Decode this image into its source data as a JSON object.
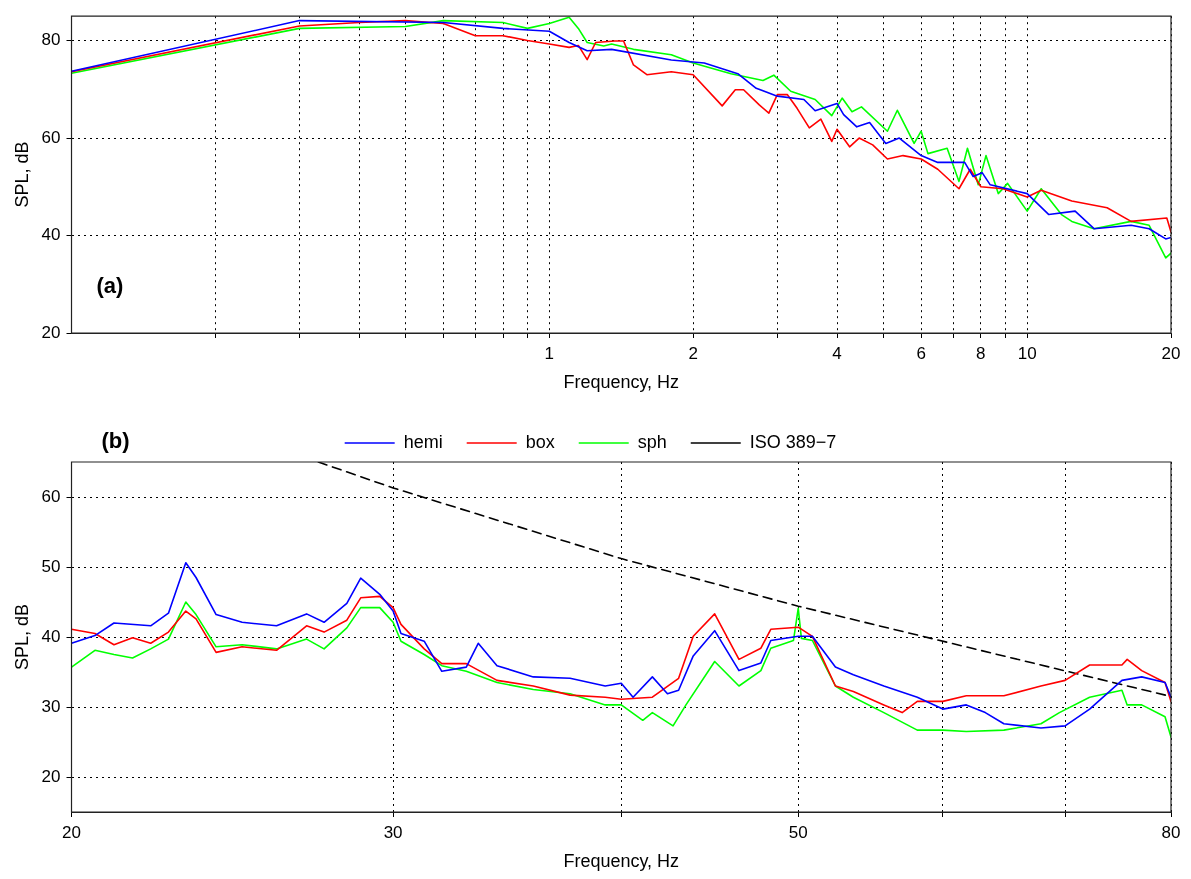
{
  "chart_data": [
    {
      "type": "line",
      "xlabel": "Frequency, Hz",
      "ylabel": "SPL, dB",
      "log": "x",
      "grid": true,
      "marker": "none",
      "line_style": "solid",
      "xlim": [
        0.1,
        20
      ],
      "ylim": [
        20,
        85
      ],
      "yticks": [
        20,
        40,
        60,
        80
      ],
      "xticks": [
        {
          "value": 0.2,
          "label": null
        },
        {
          "value": 0.3,
          "label": null
        },
        {
          "value": 0.4,
          "label": null
        },
        {
          "value": 0.5,
          "label": null
        },
        {
          "value": 0.6,
          "label": null
        },
        {
          "value": 0.7,
          "label": null
        },
        {
          "value": 0.8,
          "label": null
        },
        {
          "value": 0.9,
          "label": null
        },
        1,
        2,
        {
          "value": 3,
          "label": null
        },
        4,
        {
          "value": 5,
          "label": null
        },
        6,
        {
          "value": 7,
          "label": null
        },
        8,
        {
          "value": 9,
          "label": null
        },
        10,
        20
      ],
      "annotations": [
        "(a)"
      ],
      "series": [
        {
          "color": "#0000ff",
          "x": [
            0.1,
            0.3,
            0.6,
            0.8,
            1,
            1.1,
            1.2,
            1.35,
            1.8,
            2.11,
            2.48,
            2.71,
            3,
            3.41,
            3.6,
            4,
            4.13,
            4.4,
            4.68,
            5.06,
            5.4,
            6,
            6.5,
            7.4,
            7.71,
            8.05,
            8.37,
            10,
            11.1,
            12.6,
            13.8,
            16.5,
            18,
            19.5,
            20
          ],
          "values": [
            73.7,
            84.1,
            83.7,
            82.5,
            81.9,
            79.6,
            77.9,
            78.2,
            76,
            75.4,
            73.2,
            70.2,
            68.6,
            67.9,
            65.6,
            67.1,
            64.8,
            62.3,
            63.2,
            58.9,
            60,
            56.4,
            55,
            55,
            52.1,
            52.9,
            50.4,
            48.6,
            44.3,
            45,
            41.4,
            42.1,
            41.4,
            39.3,
            39.6
          ]
        },
        {
          "color": "#ff0000",
          "x": [
            0.1,
            0.3,
            0.4,
            0.5,
            0.6,
            0.7,
            0.8,
            0.9,
            1,
            1.1,
            1.15,
            1.2,
            1.25,
            1.37,
            1.43,
            1.5,
            1.6,
            1.8,
            2,
            2.3,
            2.45,
            2.55,
            2.75,
            2.88,
            3,
            3.15,
            3.3,
            3.5,
            3.7,
            3.9,
            4,
            4.25,
            4.45,
            4.75,
            5.1,
            5.5,
            6,
            6.5,
            7.2,
            7.6,
            8,
            8.9,
            10,
            10.7,
            12.4,
            14.7,
            16.5,
            19.6,
            20
          ],
          "values": [
            73.6,
            83,
            83.7,
            84.1,
            83.5,
            81,
            81,
            80,
            79.3,
            78.6,
            79,
            76.1,
            79.6,
            79.9,
            79.9,
            75,
            73,
            73.6,
            73,
            66.6,
            69.9,
            69.9,
            66.8,
            65.1,
            68.9,
            68.9,
            66.1,
            62.1,
            63.9,
            59.3,
            61.8,
            58.2,
            60,
            58.6,
            55.7,
            56.4,
            55.7,
            53.6,
            49.6,
            53.6,
            50,
            49.6,
            47.9,
            49.3,
            47.1,
            45.7,
            42.9,
            43.6,
            40.7
          ]
        },
        {
          "color": "#00ff00",
          "x": [
            0.1,
            0.3,
            0.5,
            0.6,
            0.8,
            0.9,
            1,
            1.1,
            1.15,
            1.2,
            1.3,
            1.35,
            1.5,
            1.8,
            2,
            2.4,
            2.8,
            2.95,
            3.2,
            3.6,
            3.9,
            4.1,
            4.3,
            4.5,
            5.1,
            5.35,
            5.8,
            6,
            6.2,
            6.8,
            7.2,
            7.5,
            7.9,
            8.2,
            8.7,
            9.1,
            10,
            10.7,
            11.8,
            12.4,
            13.8,
            16.5,
            18,
            19.5,
            20
          ],
          "values": [
            73.3,
            82.5,
            82.9,
            84.1,
            83.7,
            82.5,
            83.5,
            84.8,
            82.5,
            79.6,
            78.9,
            79.3,
            78.2,
            77.1,
            75.4,
            73.2,
            71.8,
            72.9,
            69.6,
            67.9,
            64.6,
            68.2,
            65.4,
            66.4,
            61.4,
            65.7,
            58.9,
            61.4,
            56.8,
            57.9,
            51.1,
            57.9,
            50.4,
            56.4,
            48.6,
            50.7,
            45,
            49.6,
            44.3,
            42.9,
            41.4,
            42.9,
            42.1,
            35.4,
            36.4
          ]
        }
      ]
    },
    {
      "type": "line",
      "xlabel": "Frequency, Hz",
      "ylabel": "SPL, dB",
      "log": "x",
      "grid": true,
      "marker": "none",
      "line_style": "solid",
      "legend": "top",
      "xlim": [
        20,
        80
      ],
      "ylim": [
        15,
        65
      ],
      "yticks": [
        20,
        30,
        40,
        50,
        60
      ],
      "xticks": [
        20,
        30,
        {
          "value": 40,
          "label": null
        },
        50,
        {
          "value": 60,
          "label": null
        },
        {
          "value": 70,
          "label": null
        },
        80
      ],
      "annotations": [
        "(b)"
      ],
      "series": [
        {
          "name": "hemi",
          "color": "#0000ff",
          "x": [
            20,
            20.6,
            21.1,
            22.1,
            22.6,
            23.1,
            23.4,
            24,
            24.8,
            25.9,
            26.9,
            27.5,
            28.3,
            28.8,
            29.5,
            30,
            30.3,
            31.2,
            31.9,
            32.9,
            33.4,
            34.2,
            35.8,
            37.5,
            39.2,
            40,
            40.6,
            41.6,
            42.4,
            43,
            43.8,
            45,
            46.4,
            47.7,
            48.3,
            50,
            50.9,
            52.4,
            53.6,
            55.7,
            58.1,
            60,
            61.8,
            63.3,
            64.8,
            67.9,
            70,
            72.2,
            75.2,
            77.1,
            79.4,
            80
          ],
          "values": [
            39.1,
            40.2,
            42,
            41.6,
            43.4,
            50.6,
            48.5,
            43.2,
            42.1,
            41.6,
            43.3,
            42.1,
            44.8,
            48.4,
            46.1,
            43.7,
            40.5,
            39.4,
            35.1,
            35.7,
            39.1,
            35.9,
            34.3,
            34.1,
            33,
            33.4,
            31.4,
            34.3,
            31.9,
            32.4,
            37.3,
            40.9,
            35.2,
            36.3,
            39.5,
            40.1,
            40.1,
            35.7,
            34.6,
            33,
            31.4,
            29.7,
            30.3,
            29.2,
            27.6,
            27,
            27.3,
            29.7,
            33.8,
            34.3,
            33.5,
            31.4
          ]
        },
        {
          "name": "box",
          "color": "#ff0000",
          "x": [
            20,
            20.6,
            21.1,
            21.6,
            22.1,
            22.6,
            23.1,
            23.4,
            24,
            24.8,
            25.9,
            26.9,
            27.5,
            28.3,
            28.8,
            29.5,
            30,
            30.3,
            31.2,
            31.9,
            32.9,
            34.2,
            35.8,
            37.5,
            39.2,
            40,
            41.6,
            43,
            43.8,
            45,
            46.4,
            47.7,
            48.3,
            50,
            50.9,
            52.4,
            53.6,
            55.7,
            57,
            58.1,
            60,
            61.8,
            64.8,
            67.9,
            70,
            72.2,
            75.2,
            75.7,
            77.1,
            79.4,
            80
          ],
          "values": [
            41.1,
            40.5,
            38.9,
            39.9,
            39.1,
            40.7,
            43.7,
            42.6,
            37.8,
            38.6,
            38.1,
            41.6,
            40.7,
            42.4,
            45.6,
            45.8,
            44.2,
            41.8,
            38.3,
            36.2,
            36.2,
            33.8,
            33,
            31.7,
            31.4,
            31.1,
            31.4,
            34.1,
            40.1,
            43.3,
            36.8,
            38.4,
            41.1,
            41.4,
            40.1,
            33,
            32.2,
            30.3,
            29.2,
            30.8,
            30.8,
            31.6,
            31.6,
            33,
            33.8,
            36,
            36,
            36.8,
            35.2,
            33.5,
            30.8
          ]
        },
        {
          "name": "sph",
          "color": "#00ff00",
          "x": [
            20,
            20.6,
            21.1,
            21.6,
            22.1,
            22.6,
            23.1,
            23.4,
            24,
            24.8,
            25.9,
            26.9,
            27.5,
            28.3,
            28.8,
            29.5,
            30,
            30.3,
            31.2,
            31.9,
            32.9,
            34.2,
            35.8,
            37.5,
            39.2,
            40,
            41.1,
            41.6,
            42.7,
            43.4,
            45,
            46.4,
            47.7,
            48.3,
            49.7,
            50,
            50.2,
            50.9,
            52.4,
            53.6,
            55.7,
            58.1,
            60,
            61.8,
            64.8,
            67.9,
            69.5,
            72.2,
            75.2,
            75.7,
            77.1,
            79.4,
            80
          ],
          "values": [
            35.7,
            38.1,
            37.5,
            37,
            38.3,
            39.7,
            45,
            43.2,
            38.6,
            38.9,
            38.3,
            39.7,
            38.3,
            41.3,
            44.2,
            44.2,
            42.1,
            39.4,
            37.5,
            35.9,
            35.1,
            33.5,
            32.5,
            31.9,
            30.3,
            30.3,
            28.1,
            29.2,
            27.3,
            30.3,
            36.5,
            33,
            35.2,
            38.4,
            39.5,
            44.1,
            39.8,
            39.5,
            33,
            31.4,
            29.2,
            26.7,
            26.7,
            26.5,
            26.7,
            27.6,
            29.2,
            31.4,
            32.4,
            30.3,
            30.3,
            28.6,
            25.7
          ]
        },
        {
          "name": "ISO 389−7",
          "color": "#000000",
          "line_style": "dashed",
          "x": [
            27.3,
            30,
            40,
            50,
            80
          ],
          "values": [
            65,
            61.3,
            51.2,
            44.4,
            31.5
          ]
        }
      ]
    }
  ]
}
